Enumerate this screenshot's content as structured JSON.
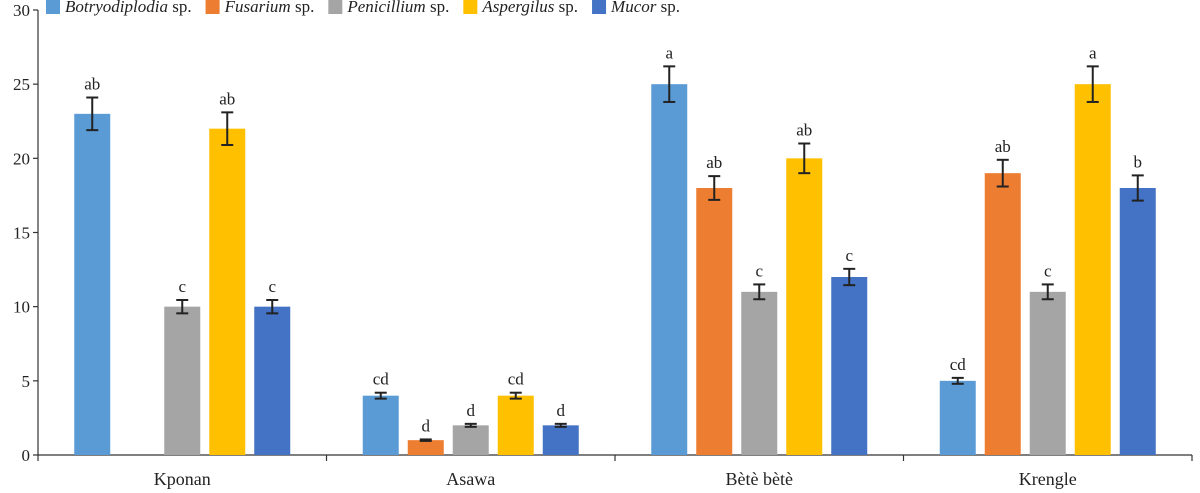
{
  "chart_data": {
    "type": "bar",
    "categories": [
      "Kponan",
      "Asawa",
      "Bètè bètè",
      "Krengle"
    ],
    "ylim": [
      0,
      30
    ],
    "yticks": [
      0,
      5,
      10,
      15,
      20,
      25,
      30
    ],
    "legend_position": "top",
    "grid": false,
    "series": [
      {
        "name_italic": "Botryodiplodia",
        "name_suffix": " sp.",
        "color": "#5B9BD5",
        "values": [
          23,
          4,
          25,
          5
        ],
        "errors": [
          1.1,
          0.2,
          1.2,
          0.2
        ],
        "letters": [
          "ab",
          "cd",
          "a",
          "cd"
        ]
      },
      {
        "name_italic": "Fusarium",
        "name_suffix": " sp.",
        "color": "#ED7D31",
        "values": [
          null,
          1,
          18,
          19
        ],
        "errors": [
          null,
          0.05,
          0.8,
          0.9
        ],
        "letters": [
          "",
          "d",
          "ab",
          "ab"
        ]
      },
      {
        "name_italic": "Penicillium",
        "name_suffix": " sp.",
        "color": "#A5A5A5",
        "values": [
          10,
          2,
          11,
          11
        ],
        "errors": [
          0.45,
          0.1,
          0.5,
          0.5
        ],
        "letters": [
          "c",
          "d",
          "c",
          "c"
        ]
      },
      {
        "name_italic": "Aspergilus",
        "name_suffix": " sp.",
        "color": "#FFC000",
        "values": [
          22,
          4,
          20,
          25
        ],
        "errors": [
          1.1,
          0.2,
          1.0,
          1.2
        ],
        "letters": [
          "ab",
          "cd",
          "ab",
          "a"
        ]
      },
      {
        "name_italic": "Mucor",
        "name_suffix": " sp.",
        "color": "#4472C4",
        "values": [
          10,
          2,
          12,
          18
        ],
        "errors": [
          0.45,
          0.1,
          0.55,
          0.85
        ],
        "letters": [
          "c",
          "d",
          "c",
          "b"
        ]
      }
    ]
  }
}
